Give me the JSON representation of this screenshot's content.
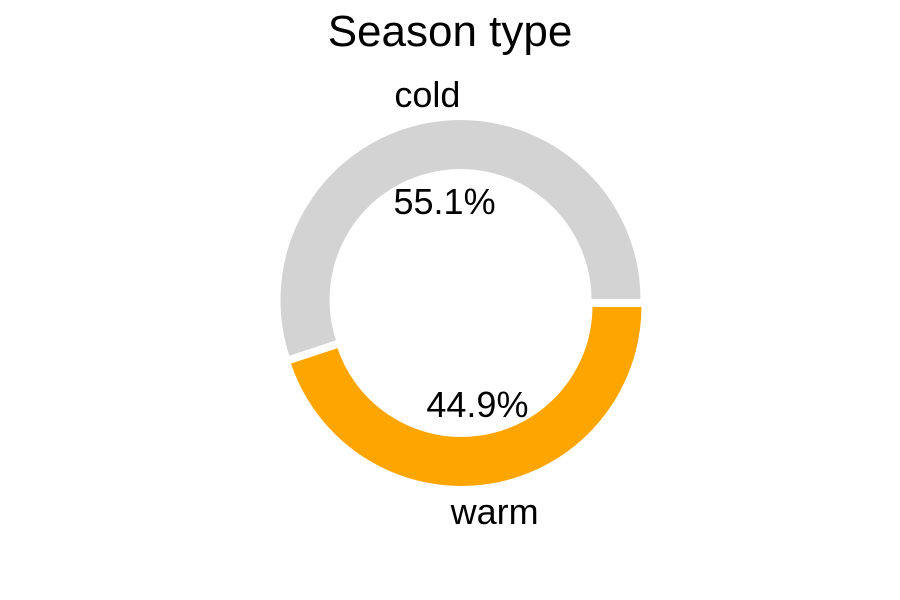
{
  "chart_data": {
    "type": "pie",
    "title": "Season type",
    "slices": [
      {
        "label": "warm",
        "value": 44.9,
        "pct_label": "44.9%",
        "color": "#ffa500"
      },
      {
        "label": "cold",
        "value": 55.1,
        "pct_label": "55.1%",
        "color": "#d3d3d3"
      }
    ],
    "donut": true,
    "legend": "none"
  }
}
